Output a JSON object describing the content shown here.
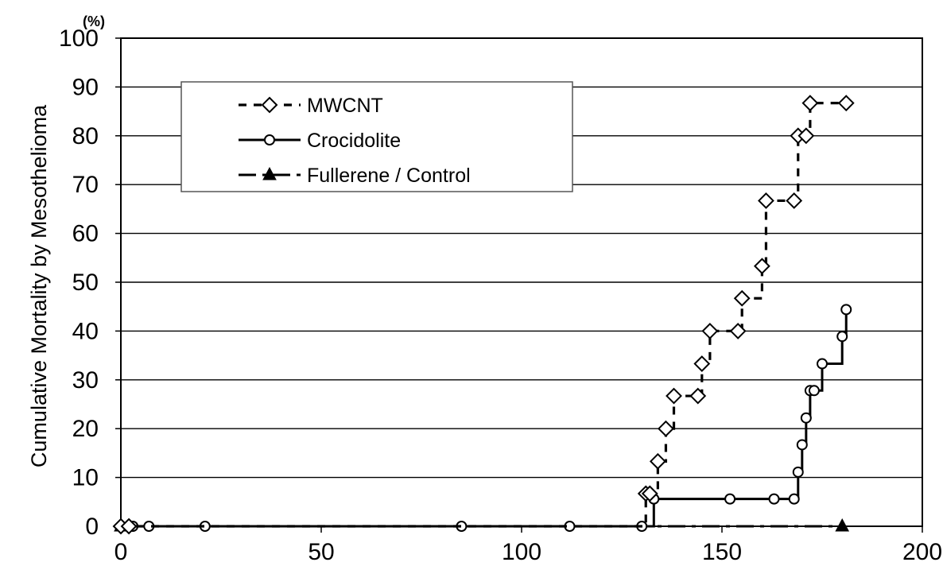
{
  "chart_data": {
    "type": "line",
    "step": true,
    "title": "",
    "xlabel": "",
    "ylabel": "Cumulative Mortality by Mesothelioma",
    "y_unit": "(%)",
    "xlim": [
      0,
      200
    ],
    "ylim": [
      0,
      100
    ],
    "x_ticks": [
      "0",
      "50",
      "100",
      "150",
      "200"
    ],
    "y_ticks": [
      "0",
      "10",
      "20",
      "30",
      "40",
      "50",
      "60",
      "70",
      "80",
      "90",
      "100"
    ],
    "grid": "horizontal",
    "legend_position": "top-left",
    "series": [
      {
        "name": "MWCNT",
        "style": "dashed",
        "marker": "diamond",
        "x": [
          0,
          2,
          131,
          132,
          134,
          136,
          138,
          144,
          145,
          147,
          154,
          155,
          160,
          161,
          168,
          169,
          171,
          172,
          181
        ],
        "y": [
          0,
          0,
          6.7,
          6.7,
          13.3,
          20,
          26.7,
          26.7,
          33.3,
          40,
          40,
          46.7,
          53.3,
          66.7,
          66.7,
          80,
          80,
          86.7,
          86.7
        ]
      },
      {
        "name": "Crocidolite",
        "style": "solid",
        "marker": "circle",
        "x": [
          0,
          3,
          7,
          21,
          85,
          112,
          130,
          133,
          152,
          163,
          168,
          169,
          170,
          171,
          172,
          173,
          175,
          180,
          181
        ],
        "y": [
          0,
          0,
          0,
          0,
          0,
          0,
          0,
          5.6,
          5.6,
          5.6,
          5.6,
          11.1,
          16.7,
          22.2,
          27.8,
          27.8,
          33.3,
          38.9,
          44.4
        ]
      },
      {
        "name": "Fullerene / Control",
        "style": "dash-dot",
        "marker": "triangle",
        "x": [
          0,
          180
        ],
        "y": [
          0,
          0
        ]
      }
    ]
  }
}
